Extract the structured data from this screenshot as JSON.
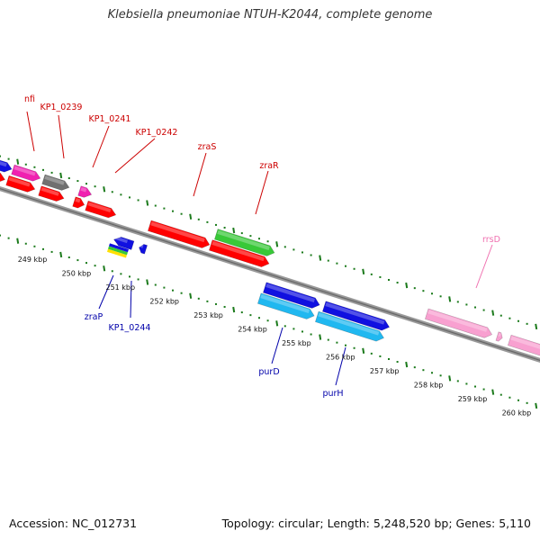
{
  "title": "Klebsiella pneumoniae NTUH-K2044, complete genome",
  "footer": {
    "accession": "Accession: NC_012731",
    "summary": "Topology: circular; Length: 5,248,520 bp; Genes: 5,110"
  },
  "colors": {
    "tick": "#1b7a1b",
    "red": "#ff0000",
    "blue": "#1010e0",
    "cyan": "#20b8f0",
    "green": "#38c838",
    "magenta": "#f020b0",
    "gray": "#707070",
    "pink": "#f8a0d0",
    "label_red": "#cc0000",
    "label_blue": "#0000aa",
    "label_pink": "#f070b0",
    "backbone": "#888888"
  },
  "ruler_labels": [
    "249 kbp",
    "250 kbp",
    "251 kbp",
    "252 kbp",
    "253 kbp",
    "254 kbp",
    "255 kbp",
    "256 kbp",
    "257 kbp",
    "258 kbp",
    "259 kbp",
    "260 kbp"
  ],
  "gene_labels": {
    "nfi": "nfi",
    "kp1_0239": "KP1_0239",
    "kp1_0241": "KP1_0241",
    "kp1_0242": "KP1_0242",
    "zras": "zraS",
    "zrar": "zraR",
    "rrsd": "rrsD",
    "zrap": "zraP",
    "kp1_0244": "KP1_0244",
    "purd": "purD",
    "purh": "purH"
  }
}
